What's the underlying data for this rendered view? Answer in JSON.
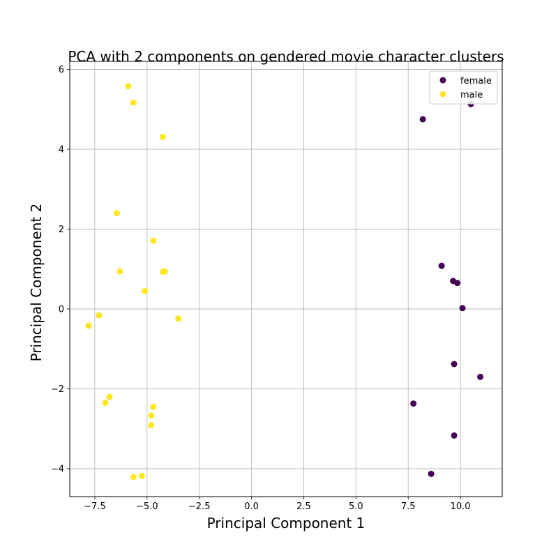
{
  "chart_data": {
    "type": "scatter",
    "title": "PCA with 2 components on gendered movie character clusters",
    "xlabel": "Principal Component 1",
    "ylabel": "Principal Component 2",
    "xlim": [
      -8.7,
      12.0
    ],
    "ylim": [
      -4.7,
      6.2
    ],
    "xticks": [
      -7.5,
      -5.0,
      -2.5,
      0.0,
      2.5,
      5.0,
      7.5,
      10.0
    ],
    "xtick_labels": [
      "−7.5",
      "−5.0",
      "−2.5",
      "0.0",
      "2.5",
      "5.0",
      "7.5",
      "10.0"
    ],
    "yticks": [
      -4,
      -2,
      0,
      2,
      4,
      6
    ],
    "ytick_labels": [
      "−4",
      "−2",
      "0",
      "2",
      "4",
      "6"
    ],
    "grid": true,
    "legend_position": "top-right",
    "series": [
      {
        "name": "female",
        "color": "#440154",
        "points": [
          [
            10.5,
            5.13
          ],
          [
            8.2,
            4.75
          ],
          [
            9.1,
            1.08
          ],
          [
            9.65,
            0.7
          ],
          [
            9.85,
            0.65
          ],
          [
            10.1,
            0.02
          ],
          [
            9.7,
            -1.38
          ],
          [
            10.95,
            -1.7
          ],
          [
            7.75,
            -2.37
          ],
          [
            9.7,
            -3.17
          ],
          [
            8.6,
            -4.13
          ]
        ]
      },
      {
        "name": "male",
        "color": "#fde725",
        "points": [
          [
            -5.9,
            5.58
          ],
          [
            -5.65,
            5.17
          ],
          [
            -4.25,
            4.31
          ],
          [
            -6.45,
            2.4
          ],
          [
            -4.7,
            1.71
          ],
          [
            -6.3,
            0.94
          ],
          [
            -4.25,
            0.93
          ],
          [
            -4.15,
            0.94
          ],
          [
            -5.1,
            0.45
          ],
          [
            -3.5,
            -0.24
          ],
          [
            -7.3,
            -0.16
          ],
          [
            -7.8,
            -0.42
          ],
          [
            -6.8,
            -2.2
          ],
          [
            -7.0,
            -2.35
          ],
          [
            -4.7,
            -2.45
          ],
          [
            -4.8,
            -2.67
          ],
          [
            -4.8,
            -2.91
          ],
          [
            -5.65,
            -4.21
          ],
          [
            -5.25,
            -4.18
          ]
        ]
      }
    ]
  }
}
